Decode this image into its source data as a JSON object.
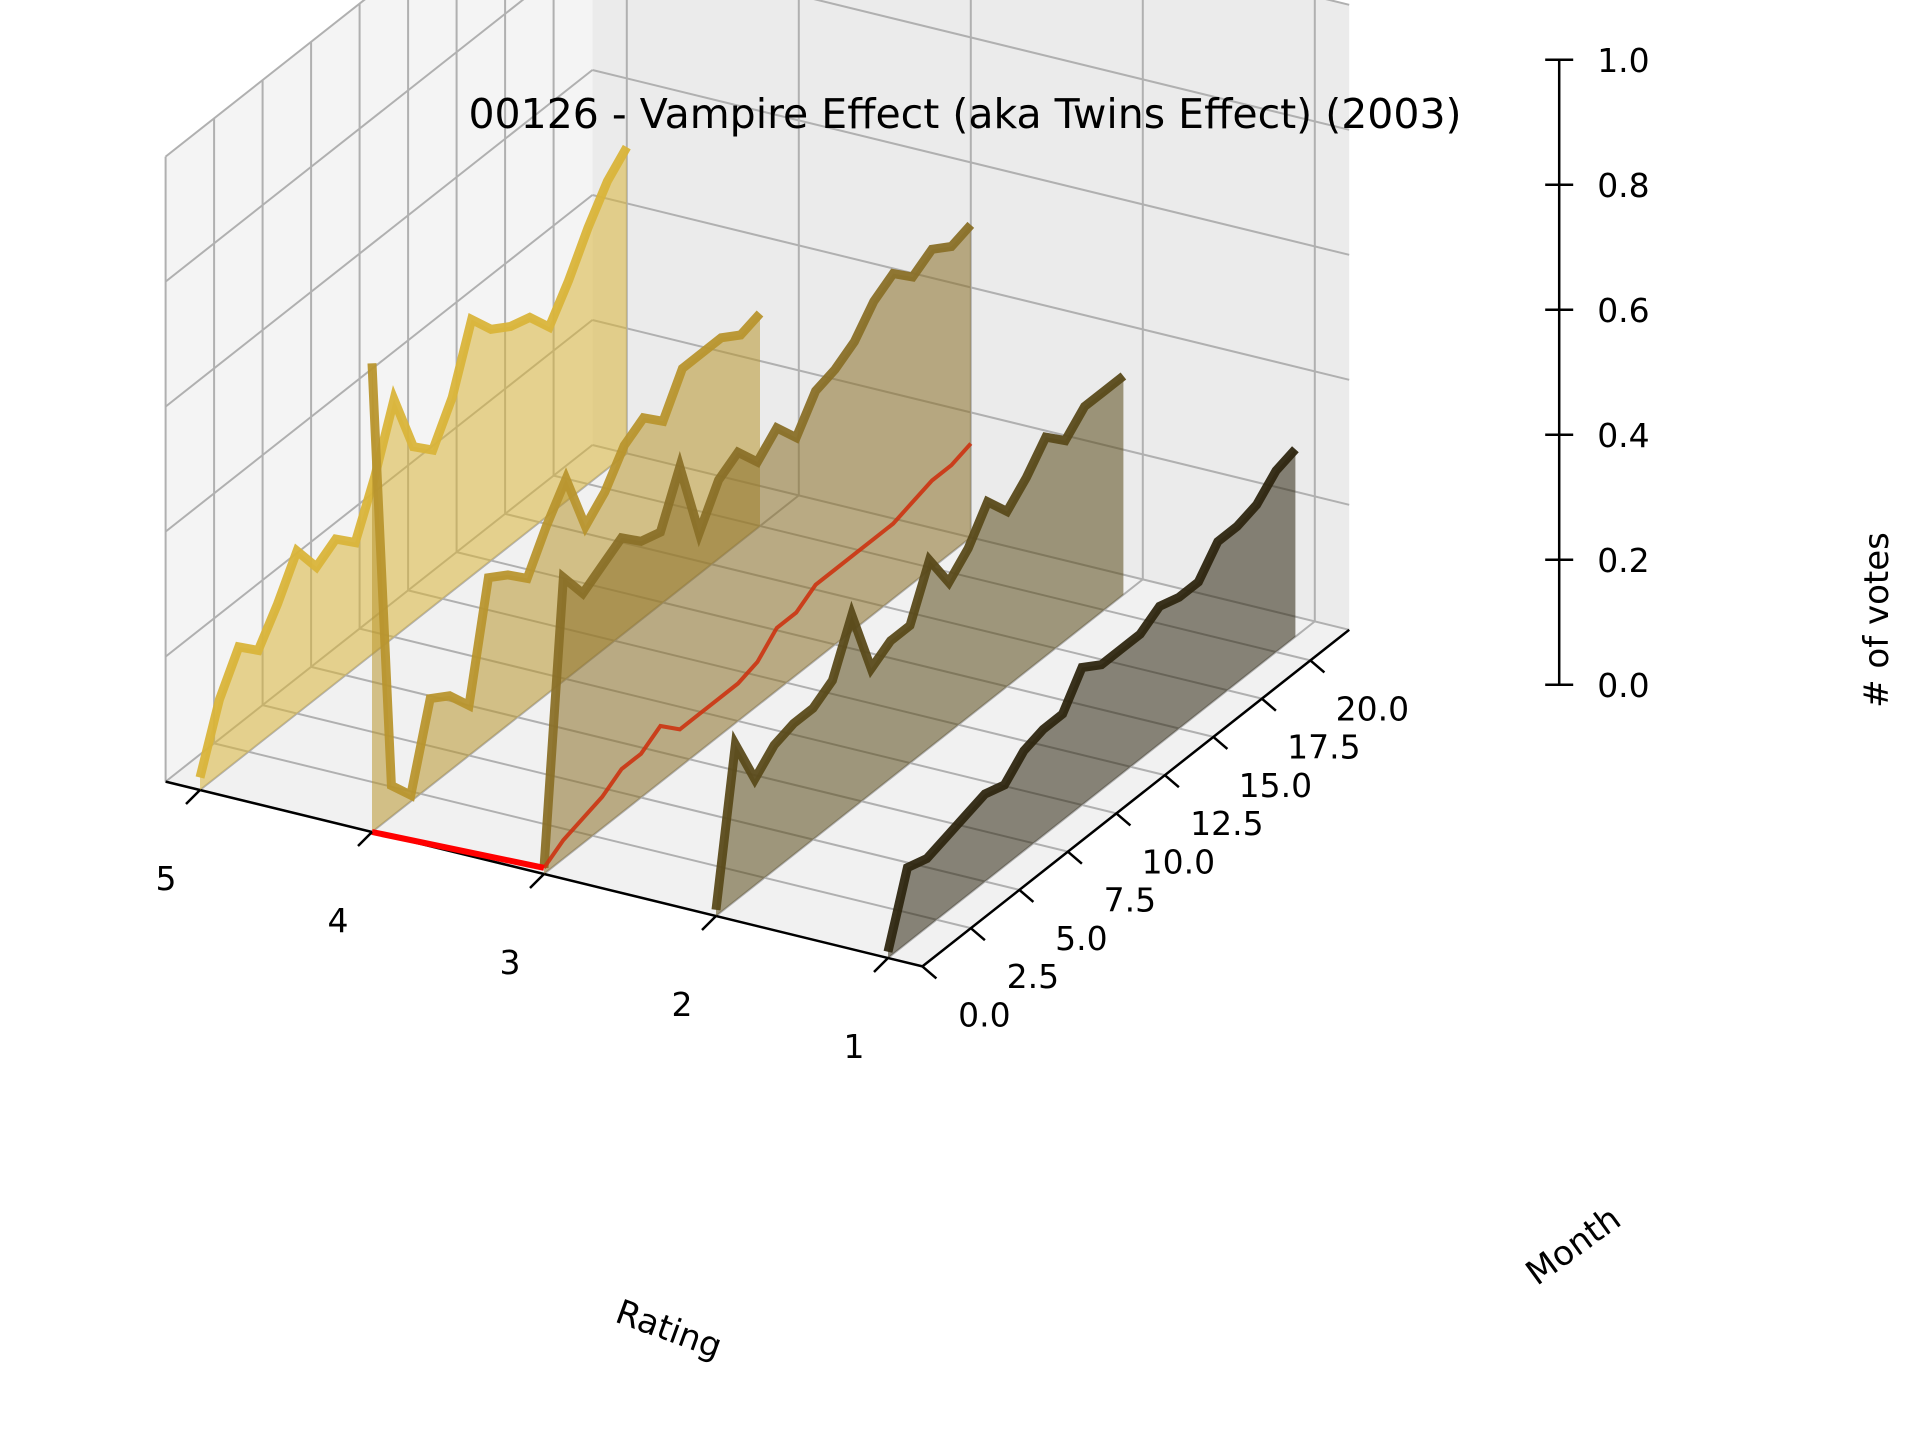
{
  "chart_data": {
    "type": "line",
    "title": "00126 - Vampire Effect (aka Twins Effect) (2003)",
    "xlabel": "Rating",
    "ylabel": "Month",
    "zlabel": "# of votes",
    "projection": "3d",
    "grid": true,
    "x_ticks": [
      "1",
      "2",
      "3",
      "4",
      "5"
    ],
    "y_ticks": [
      "0.0",
      "2.5",
      "5.0",
      "7.5",
      "10.0",
      "12.5",
      "15.0",
      "17.5",
      "20.0"
    ],
    "z_ticks": [
      "0.0",
      "0.2",
      "0.4",
      "0.6",
      "0.8",
      "1.0"
    ],
    "xlim": [
      0.8,
      5.2
    ],
    "ylim": [
      0,
      22
    ],
    "zlim": [
      0,
      1
    ],
    "series": [
      {
        "rating": 5,
        "color": "#d9b43a",
        "values": [
          0.02,
          0.12,
          0.18,
          0.15,
          0.2,
          0.26,
          0.21,
          0.23,
          0.2,
          0.28,
          0.38,
          0.28,
          0.25,
          0.31,
          0.41,
          0.37,
          0.35,
          0.34,
          0.3,
          0.35,
          0.41,
          0.46,
          0.49
        ]
      },
      {
        "rating": 4,
        "color": "#b8952e",
        "values": [
          0.75,
          0.05,
          0.01,
          0.14,
          0.12,
          0.08,
          0.26,
          0.24,
          0.21,
          0.27,
          0.32,
          0.22,
          0.25,
          0.3,
          0.32,
          0.29,
          0.35,
          0.35,
          0.35,
          0.33,
          0.34
        ]
      },
      {
        "rating": 3,
        "color": "#8a7028",
        "values": [
          0.01,
          0.45,
          0.4,
          0.42,
          0.44,
          0.41,
          0.4,
          0.48,
          0.35,
          0.41,
          0.43,
          0.39,
          0.42,
          0.38,
          0.43,
          0.44,
          0.46,
          0.5,
          0.52,
          0.49,
          0.51,
          0.49,
          0.5
        ]
      },
      {
        "rating": "3-red",
        "color": "#cc3311",
        "values": [
          0.01,
          0.03,
          0.04,
          0.05,
          0.07,
          0.07,
          0.09,
          0.06,
          0.06,
          0.06,
          0.06,
          0.07,
          0.1,
          0.1,
          0.12,
          0.12,
          0.12,
          0.12,
          0.12,
          0.13,
          0.14,
          0.14,
          0.15
        ]
      },
      {
        "rating": "4-red",
        "color": "#ff0000",
        "values": [
          0.0,
          0.0
        ]
      },
      {
        "rating": 2,
        "color": "#5a4a1a",
        "values": [
          0.01,
          0.25,
          0.17,
          0.2,
          0.21,
          0.21,
          0.23,
          0.31,
          0.2,
          0.22,
          0.22,
          0.3,
          0.24,
          0.27,
          0.32,
          0.28,
          0.31,
          0.35,
          0.32,
          0.35,
          0.35,
          0.35
        ]
      },
      {
        "rating": 1,
        "color": "#2e2610",
        "values": [
          0.01,
          0.12,
          0.11,
          0.12,
          0.13,
          0.14,
          0.13,
          0.16,
          0.17,
          0.17,
          0.22,
          0.2,
          0.2,
          0.2,
          0.22,
          0.21,
          0.21,
          0.25,
          0.25,
          0.26,
          0.29,
          0.3
        ]
      }
    ]
  }
}
